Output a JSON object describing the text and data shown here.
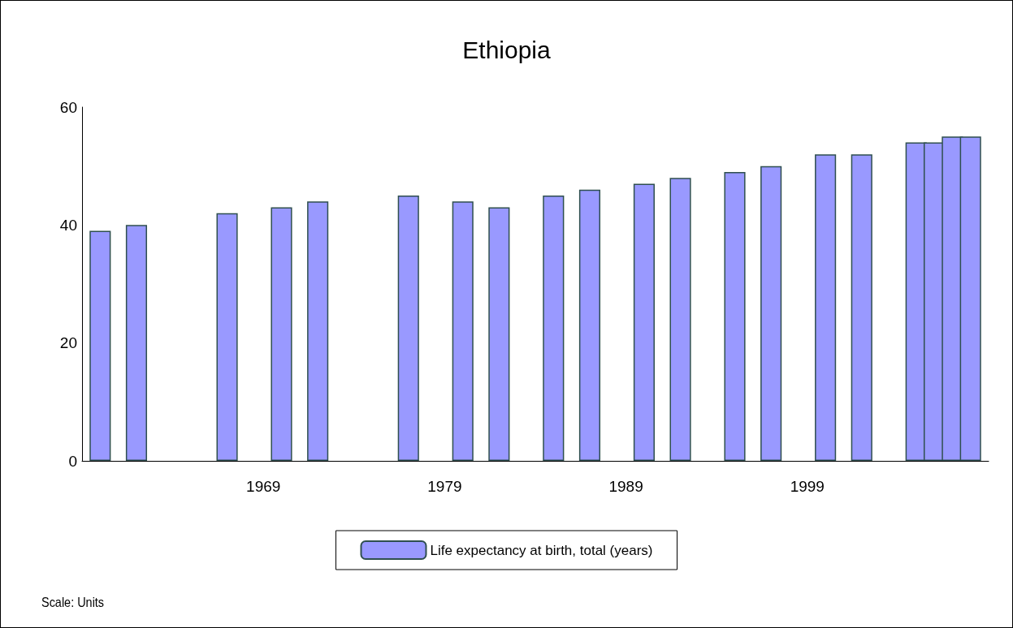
{
  "chart_data": {
    "type": "bar",
    "title": "Ethiopia",
    "x": [
      1960,
      1962,
      1967,
      1970,
      1972,
      1977,
      1980,
      1982,
      1985,
      1987,
      1990,
      1992,
      1995,
      1997,
      2000,
      2002,
      2005,
      2006,
      2007,
      2008
    ],
    "series": [
      {
        "name": "Life expectancy at birth, total (years)",
        "color": "#9999ff",
        "values": [
          39,
          40,
          42,
          43,
          44,
          45,
          44,
          43,
          45,
          46,
          47,
          48,
          49,
          50,
          52,
          52,
          54,
          54,
          55,
          55
        ]
      }
    ],
    "xlim": [
      1959,
      2009
    ],
    "xticks": [
      1969,
      1979,
      1989,
      1999
    ],
    "ylim": [
      0,
      60
    ],
    "yticks": [
      0,
      20,
      40,
      60
    ],
    "grid": false,
    "legend": "bottom",
    "annotations": [
      "Scale: Units"
    ]
  }
}
